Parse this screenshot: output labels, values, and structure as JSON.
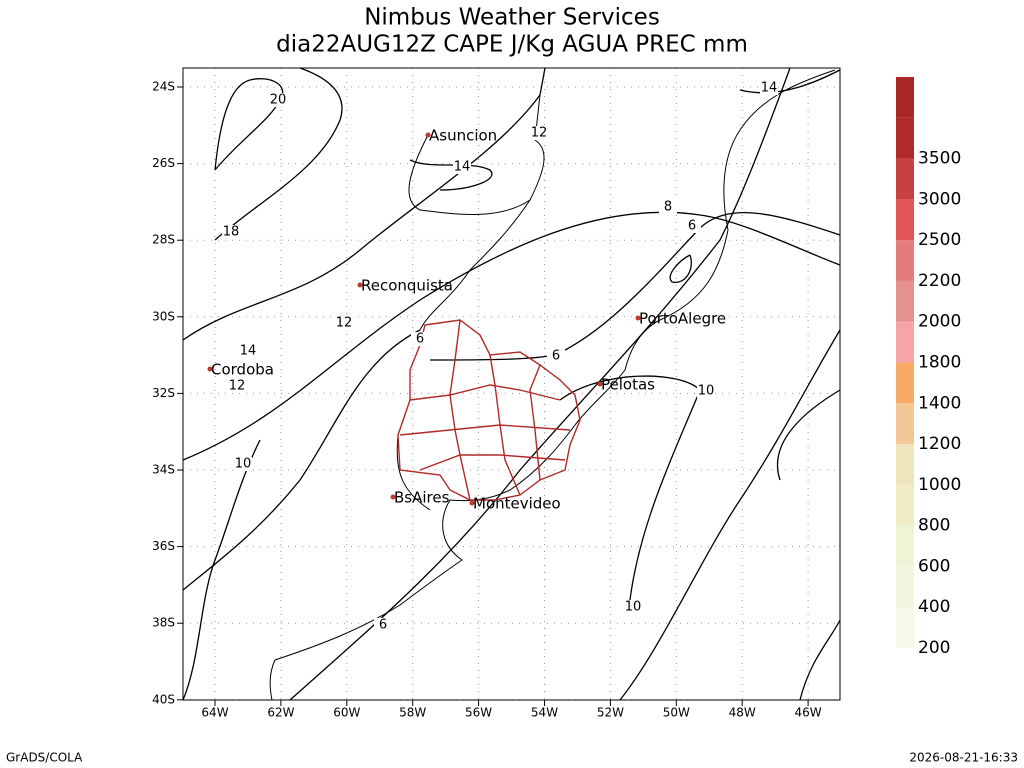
{
  "header": {
    "title": "Nimbus Weather Services",
    "subtitle": "dia22AUG12Z CAPE J/Kg AGUA PREC mm"
  },
  "map": {
    "lon_ticks": [
      "64W",
      "62W",
      "60W",
      "58W",
      "56W",
      "54W",
      "52W",
      "50W",
      "48W",
      "46W"
    ],
    "lat_ticks": [
      "24S",
      "26S",
      "28S",
      "30S",
      "32S",
      "34S",
      "36S",
      "38S",
      "40S"
    ],
    "cities": [
      "Asuncion",
      "Reconquista",
      "Cordoba",
      "PortoAlegre",
      "Pelotas",
      "BsAires",
      "Montevideo"
    ],
    "contour_labels": [
      20,
      12,
      14,
      18,
      8,
      6,
      12,
      14,
      12,
      6,
      6,
      10,
      10,
      10,
      6,
      14
    ]
  },
  "colorbar": {
    "levels": [
      200,
      400,
      600,
      800,
      1000,
      1200,
      1400,
      1800,
      2000,
      2200,
      2500,
      3000,
      3500
    ],
    "colors": [
      "#f6f9e7",
      "#f3f6df",
      "#f1f3d5",
      "#f0edc6",
      "#efe5bc",
      "#f2c896",
      "#f7a968",
      "#f5a6a4",
      "#e59190",
      "#e37d7c",
      "#e15554",
      "#c8403f",
      "#b02a28"
    ],
    "top_color": "#a92826"
  },
  "footer": {
    "left": "GrADS/COLA",
    "right": "2026-08-21-16:33"
  }
}
